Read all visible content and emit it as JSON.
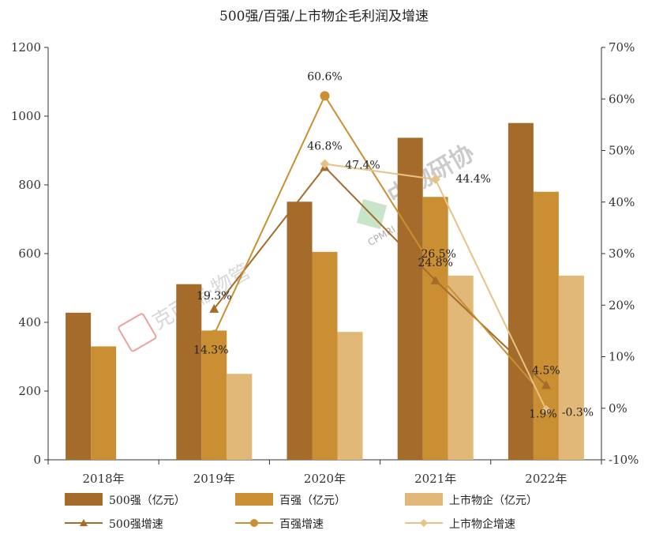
{
  "chart_data": {
    "type": "bar",
    "title": "500强/百强/上市物企毛利润及增速",
    "categories": [
      "2018年",
      "2019年",
      "2020年",
      "2021年",
      "2022年"
    ],
    "y_left": {
      "min": 0,
      "max": 1200,
      "ticks": [
        "0",
        "200",
        "400",
        "600",
        "800",
        "1000",
        "1200"
      ]
    },
    "y_right": {
      "min": -10,
      "max": 70,
      "ticks": [
        "-10%",
        "0%",
        "10%",
        "20%",
        "30%",
        "40%",
        "50%",
        "60%",
        "70%"
      ]
    },
    "bar_series": [
      {
        "name": "500强（亿元）",
        "color": "#A56B2B",
        "values": [
          428,
          511,
          751,
          937,
          980
        ]
      },
      {
        "name": "百强（亿元）",
        "color": "#C98F32",
        "values": [
          330,
          376,
          605,
          765,
          780
        ]
      },
      {
        "name": "上市物企（亿元）",
        "color": "#E1B878",
        "values": [
          null,
          250,
          372,
          536,
          536
        ]
      }
    ],
    "line_series": [
      {
        "name": "500强增速",
        "color": "#A56B2B",
        "marker": "triangle",
        "values": [
          null,
          19.3,
          46.8,
          24.8,
          4.5
        ],
        "labels": [
          "",
          "19.3%",
          "46.8%",
          "24.8%",
          "4.5%"
        ]
      },
      {
        "name": "百强增速",
        "color": "#C98F32",
        "marker": "circle",
        "values": [
          null,
          14.3,
          60.6,
          26.5,
          1.9
        ],
        "labels": [
          "",
          "14.3%",
          "60.6%",
          "26.5%",
          "1.9%"
        ]
      },
      {
        "name": "上市物企增速",
        "color": "#E6C384",
        "marker": "diamond",
        "values": [
          null,
          null,
          47.4,
          44.4,
          -0.3
        ],
        "labels": [
          "",
          "",
          "47.4%",
          "44.4%",
          "-0.3%"
        ]
      }
    ],
    "legend_position": "bottom"
  },
  "watermarks": {
    "left_text": "克而瑞·物管",
    "right_text": "中物研协",
    "right_sub": "CPMRI"
  }
}
